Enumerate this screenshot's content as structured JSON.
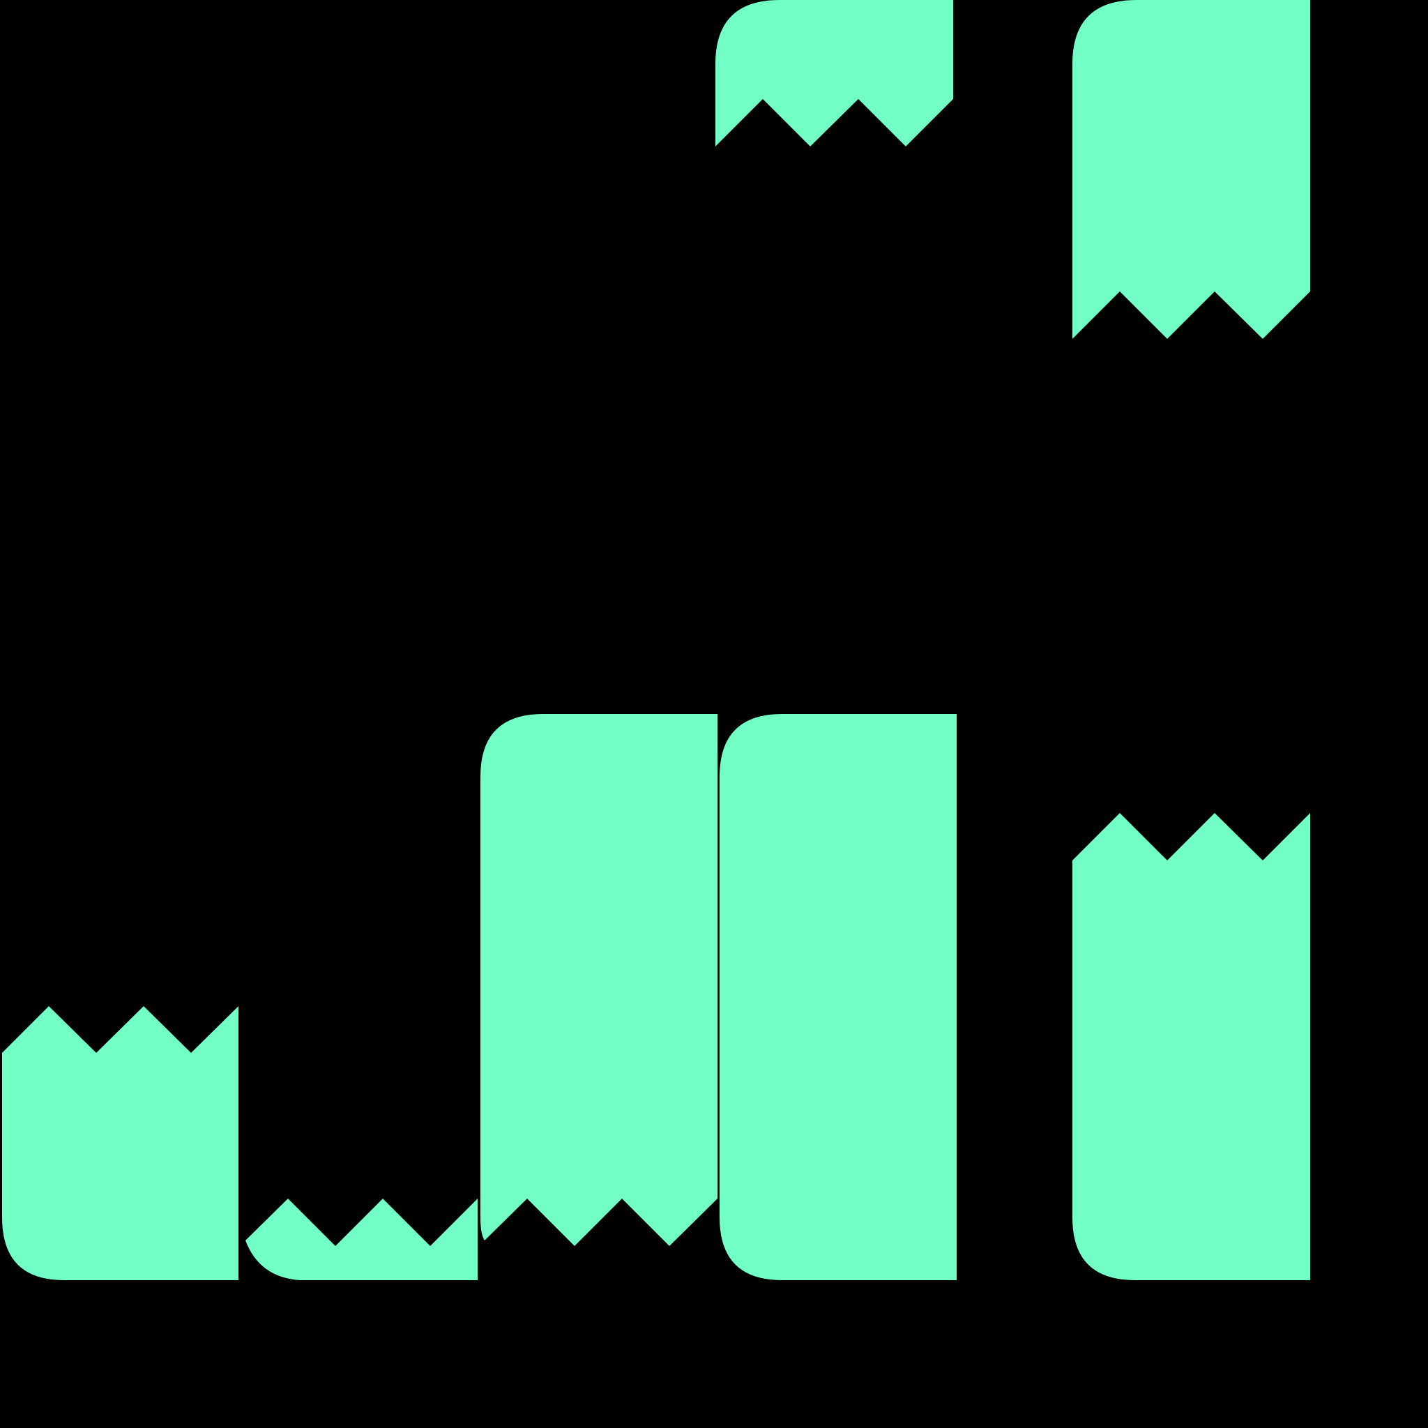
{
  "colors": {
    "background": "#000000",
    "shape": "#71FFC5"
  },
  "shapes": [
    {
      "name": "notched-block-top-center",
      "kind": "torn-bottom"
    },
    {
      "name": "notched-block-top-right",
      "kind": "torn-bottom"
    },
    {
      "name": "notched-block-bottom-left",
      "kind": "torn-top"
    },
    {
      "name": "notched-block-bottom-left-fragment",
      "kind": "torn-top"
    },
    {
      "name": "notched-block-bottom-mid",
      "kind": "torn-bottom"
    },
    {
      "name": "solid-block-bottom-center",
      "kind": "solid"
    },
    {
      "name": "notched-block-bottom-right",
      "kind": "torn-top"
    }
  ]
}
